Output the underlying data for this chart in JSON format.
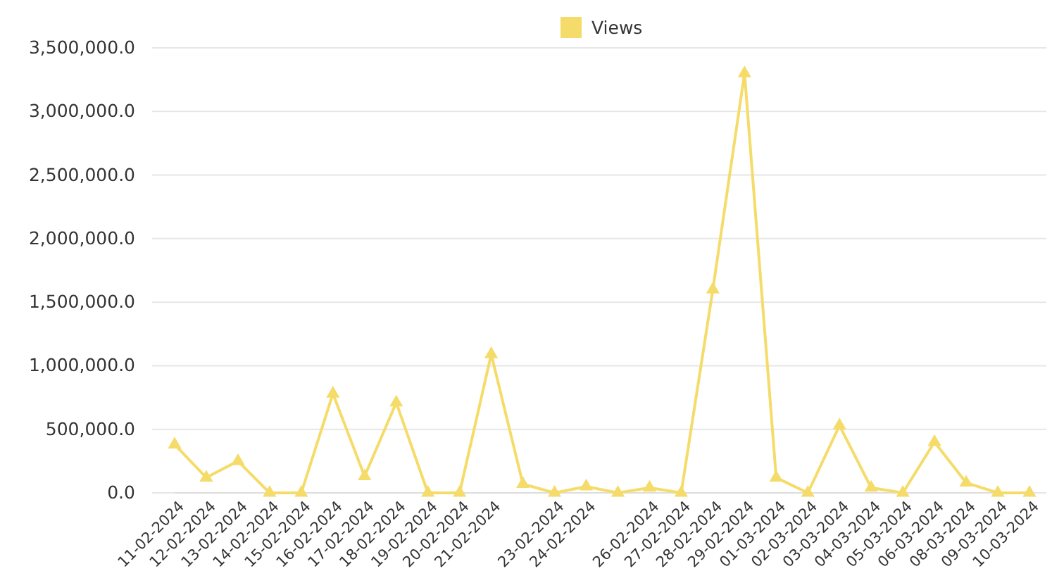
{
  "chart_data": {
    "type": "line",
    "categories": [
      "11-02-2024",
      "12-02-2024",
      "13-02-2024",
      "14-02-2024",
      "15-02-2024",
      "16-02-2024",
      "17-02-2024",
      "18-02-2024",
      "19-02-2024",
      "20-02-2024",
      "21-02-2024",
      null,
      "23-02-2024",
      "24-02-2024",
      null,
      "26-02-2024",
      "27-02-2024",
      "28-02-2024",
      "29-02-2024",
      "01-03-2024",
      "02-03-2024",
      "03-03-2024",
      "04-03-2024",
      "05-03-2024",
      "06-03-2024",
      "08-03-2024",
      "09-03-2024",
      "10-03-2024"
    ],
    "series": [
      {
        "name": "Views",
        "color": "#f5dc6a",
        "values": [
          380000,
          120000,
          250000,
          0,
          0,
          780000,
          130000,
          710000,
          0,
          0,
          1090000,
          70000,
          0,
          50000,
          0,
          40000,
          0,
          1600000,
          3300000,
          120000,
          0,
          530000,
          40000,
          0,
          400000,
          80000,
          0,
          0
        ]
      }
    ],
    "ylim": [
      0,
      3500000
    ],
    "yticks": [
      {
        "value": 0,
        "label": "0.0"
      },
      {
        "value": 500000,
        "label": "500,000.0"
      },
      {
        "value": 1000000,
        "label": "1,000,000.0"
      },
      {
        "value": 1500000,
        "label": "1,500,000.0"
      },
      {
        "value": 2000000,
        "label": "2,000,000.0"
      },
      {
        "value": 2500000,
        "label": "2,500,000.0"
      },
      {
        "value": 3000000,
        "label": "3,000,000.0"
      },
      {
        "value": 3500000,
        "label": "3,500,000.0"
      }
    ],
    "grid": "y",
    "legend": "top",
    "marker": "triangle",
    "line_style": "solid"
  }
}
